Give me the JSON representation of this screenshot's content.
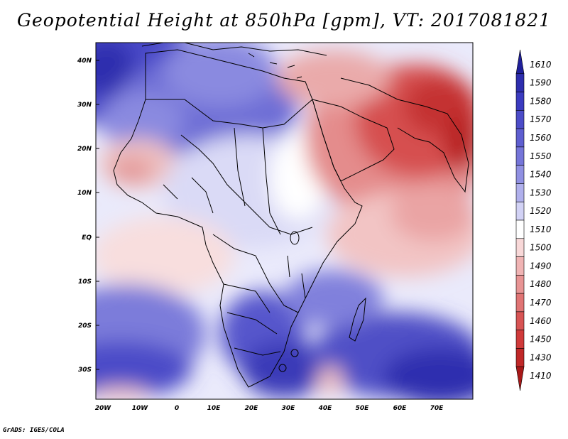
{
  "title": "Geopotential Height at 850hPa [gpm], VT: 2017081821",
  "credit": "GrADS: IGES/COLA",
  "map": {
    "lat_ticks": [
      "40N",
      "30N",
      "20N",
      "10N",
      "EQ",
      "10S",
      "20S",
      "30S"
    ],
    "lon_ticks": [
      "20W",
      "10W",
      "0",
      "10E",
      "20E",
      "30E",
      "40E",
      "50E",
      "60E",
      "70E"
    ]
  },
  "colorbar": {
    "levels": [
      "1610",
      "1590",
      "1580",
      "1570",
      "1560",
      "1550",
      "1540",
      "1530",
      "1520",
      "1510",
      "1500",
      "1490",
      "1480",
      "1470",
      "1460",
      "1450",
      "1430",
      "1410"
    ],
    "colors": [
      "#1f1f9a",
      "#2e2eae",
      "#3b3bc0",
      "#4c4cc8",
      "#5e5ed0",
      "#7575d9",
      "#9090e2",
      "#b0b0ec",
      "#d2d2f5",
      "#ffffff",
      "#f8d8d8",
      "#f0b4b4",
      "#e89494",
      "#e07474",
      "#d85454",
      "#d03a3a",
      "#c02828",
      "#a81818"
    ]
  }
}
